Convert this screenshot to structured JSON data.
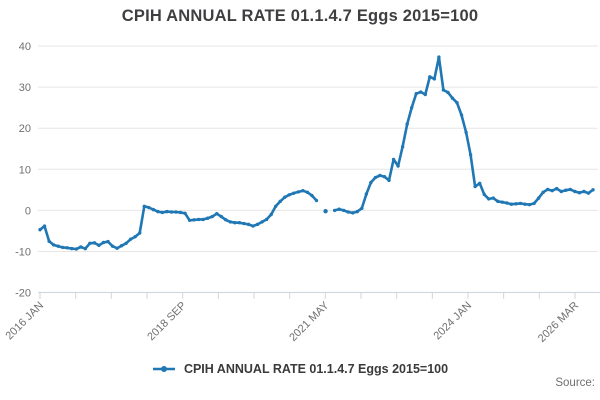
{
  "title": "CPIH ANNUAL RATE 01.1.4.7 Eggs 2015=100",
  "legend": {
    "label": "CPIH ANNUAL RATE 01.1.4.7 Eggs 2015=100"
  },
  "source_label": "Source:",
  "colors": {
    "line": "#1f77b4",
    "grid": "#e6e6e6",
    "axis": "#ccd6e0",
    "tick_label": "#707070",
    "title_text": "#3f3f42"
  },
  "chart_data": {
    "type": "line",
    "title": "CPIH ANNUAL RATE 01.1.4.7 Eggs 2015=100",
    "x_unit": "month",
    "x_start": "2016 JAN",
    "x_end": "2026 MAR",
    "x_tick_count": 16,
    "x_tick_labels": [
      "2016 JAN",
      "2018 SEP",
      "2021 MAY",
      "2024 JAN",
      "2026 MAR"
    ],
    "x_tick_label_positions": [
      0,
      4,
      8,
      12,
      15
    ],
    "ylim": [
      -20,
      40
    ],
    "y_ticks": [
      40,
      30,
      20,
      10,
      0,
      -10,
      -20
    ],
    "grid": "horizontal",
    "legend_position": "bottom",
    "series": [
      {
        "name": "CPIH ANNUAL RATE 01.1.4.7 Eggs 2015=100",
        "values": [
          -4.7,
          -3.8,
          -7.5,
          -8.4,
          -8.7,
          -9.0,
          -9.1,
          -9.3,
          -9.4,
          -8.9,
          -9.3,
          -8.0,
          -7.9,
          -8.5,
          -7.8,
          -7.6,
          -8.7,
          -9.2,
          -8.6,
          -8.0,
          -7.0,
          -6.4,
          -5.5,
          1.0,
          0.7,
          0.2,
          -0.3,
          -0.5,
          -0.3,
          -0.4,
          -0.4,
          -0.5,
          -0.7,
          -2.4,
          -2.3,
          -2.2,
          -2.2,
          -1.9,
          -1.5,
          -0.8,
          -1.5,
          -2.3,
          -2.8,
          -3.0,
          -3.0,
          -3.2,
          -3.4,
          -3.8,
          -3.4,
          -2.8,
          -2.2,
          -1.0,
          1.0,
          2.2,
          3.2,
          3.8,
          4.2,
          4.5,
          4.8,
          4.4,
          3.6,
          2.4,
          null,
          -0.2,
          null,
          0.0,
          0.3,
          0.0,
          -0.4,
          -0.6,
          -0.3,
          0.5,
          4.0,
          6.8,
          8.0,
          8.5,
          8.2,
          7.3,
          12.4,
          10.8,
          15.5,
          21.0,
          25.0,
          28.4,
          28.8,
          28.2,
          32.5,
          32.0,
          37.3,
          29.3,
          28.7,
          27.3,
          26.2,
          23.2,
          19.0,
          13.5,
          5.8,
          6.6,
          3.9,
          2.8,
          3.0,
          2.2,
          2.0,
          1.8,
          1.5,
          1.6,
          1.7,
          1.5,
          1.4,
          1.7,
          3.0,
          4.4,
          5.1,
          4.8,
          5.3,
          4.6,
          4.9,
          5.1,
          4.6,
          4.3,
          4.6,
          4.2,
          5.0
        ]
      }
    ]
  }
}
